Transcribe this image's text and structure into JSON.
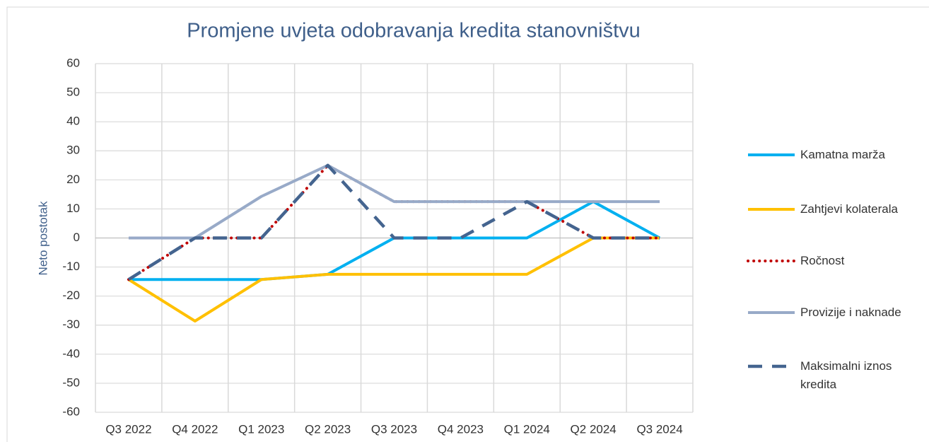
{
  "chart_data": {
    "type": "line",
    "title": "Promjene uvjeta odobravanja kredita stanovništvu",
    "ylabel": "Neto postotak",
    "categories": [
      "Q3 2022",
      "Q4 2022",
      "Q1 2023",
      "Q2 2023",
      "Q3 2023",
      "Q4 2023",
      "Q1 2024",
      "Q2 2024",
      "Q3 2024"
    ],
    "series": [
      {
        "name": "Kamatna marža",
        "color": "#00b0f0",
        "style": "solid",
        "values": [
          -14.3,
          -14.3,
          -14.3,
          -12.5,
          0,
          0,
          0,
          12.5,
          0
        ]
      },
      {
        "name": "Zahtjevi kolaterala",
        "color": "#ffc000",
        "style": "solid",
        "values": [
          -14.3,
          -28.6,
          -14.3,
          -12.5,
          -12.5,
          -12.5,
          -12.5,
          0,
          0
        ]
      },
      {
        "name": "Ročnost",
        "color": "#c00000",
        "style": "dotted",
        "values": [
          -14.3,
          0,
          0,
          25,
          12.5,
          12.5,
          12.5,
          0,
          0
        ]
      },
      {
        "name": "Provizije i naknade",
        "color": "#98aac8",
        "style": "solid",
        "values": [
          0,
          0,
          14.3,
          25,
          12.5,
          12.5,
          12.5,
          12.5,
          12.5
        ]
      },
      {
        "name": "Maksimalni iznos kredita",
        "color": "#44648f",
        "style": "dashed",
        "values": [
          -14.3,
          0,
          0,
          25,
          0,
          0,
          12.5,
          0,
          0
        ]
      }
    ],
    "ylim": [
      -60,
      60
    ],
    "yticks": [
      -60,
      -50,
      -40,
      -30,
      -20,
      -10,
      0,
      10,
      20,
      30,
      40,
      50,
      60
    ],
    "grid": true,
    "legend": "right"
  }
}
